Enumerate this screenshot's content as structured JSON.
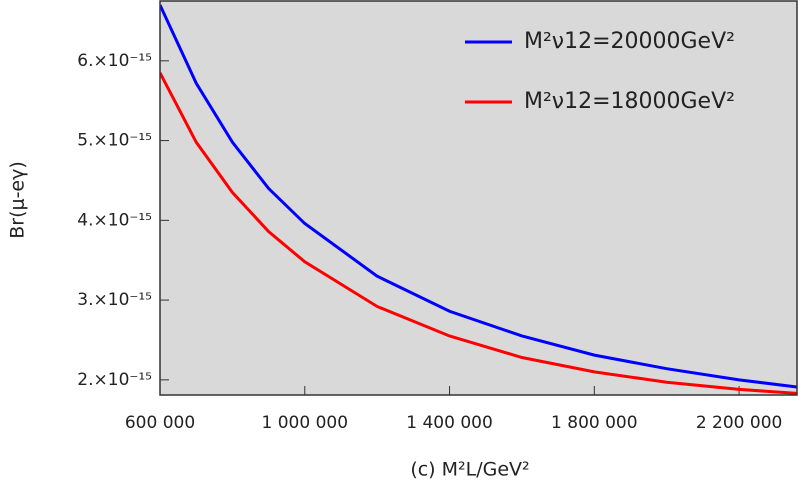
{
  "chart_data": {
    "type": "line",
    "x_label": "(c) M²L/GeV²",
    "y_label": "Br(μ-eγ)",
    "x": [
      600000,
      700000,
      800000,
      900000,
      1000000,
      1200000,
      1400000,
      1600000,
      1800000,
      2000000,
      2200000,
      2360000
    ],
    "series": [
      {
        "name": "M²ν12=20000GeV²",
        "color": "#0000ff",
        "values": [
          6.7e-15,
          5.72e-15,
          4.98e-15,
          4.4e-15,
          3.96e-15,
          3.3e-15,
          2.86e-15,
          2.55e-15,
          2.31e-15,
          2.14e-15,
          2e-15,
          1.91e-15
        ]
      },
      {
        "name": "M²ν12=18000GeV²",
        "color": "#ff0000",
        "values": [
          5.85e-15,
          4.98e-15,
          4.35e-15,
          3.86e-15,
          3.48e-15,
          2.92e-15,
          2.55e-15,
          2.28e-15,
          2.1e-15,
          1.97e-15,
          1.88e-15,
          1.83e-15
        ]
      }
    ],
    "xlim": [
      600000,
      2360000
    ],
    "ylim": [
      1.81e-15,
      6.75e-15
    ],
    "xticks": [
      {
        "value": 600000,
        "label": "600 000"
      },
      {
        "value": 1000000,
        "label": "1 000 000"
      },
      {
        "value": 1400000,
        "label": "1 400 000"
      },
      {
        "value": 1800000,
        "label": "1 800 000"
      },
      {
        "value": 2200000,
        "label": "2 200 000"
      }
    ],
    "yticks": [
      {
        "value": 2e-15,
        "label": "2.×10⁻¹⁵"
      },
      {
        "value": 3e-15,
        "label": "3.×10⁻¹⁵"
      },
      {
        "value": 4e-15,
        "label": "4.×10⁻¹⁵"
      },
      {
        "value": 5e-15,
        "label": "5.×10⁻¹⁵"
      },
      {
        "value": 6e-15,
        "label": "6.×10⁻¹⁵"
      }
    ],
    "background": "#d9d9d9",
    "legend": "top-right"
  }
}
